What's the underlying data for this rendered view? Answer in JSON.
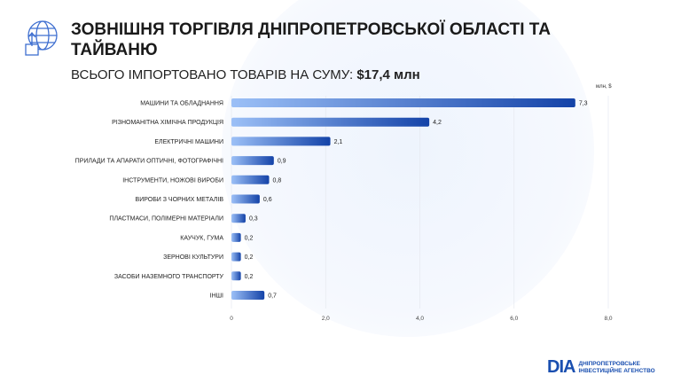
{
  "header": {
    "title": "ЗОВНІШНЯ ТОРГІВЛЯ ДНІПРОПЕТРОВСЬКОЇ ОБЛАСТІ ТА ТАЙВАНЮ",
    "subtitle_prefix": "ВСЬОГО ІМПОРТОВАНО ТОВАРІВ НА СУМУ: ",
    "subtitle_value": "$17,4 млн"
  },
  "logo": {
    "mark": "DIA",
    "line1": "ДНІПРОПЕТРОВСЬКЕ",
    "line2": "ІНВЕСТИЦІЙНЕ АГЕНСТВО"
  },
  "colors": {
    "bar_start": "#9cc0f7",
    "bar_end": "#1443a8",
    "text": "#1a1a1a"
  },
  "chart_data": {
    "type": "bar",
    "orientation": "horizontal",
    "unit_label": "млн, $",
    "categories": [
      "МАШИНИ ТА ОБЛАДНАННЯ",
      "РІЗНОМАНІТНА ХІМІЧНА ПРОДУКЦІЯ",
      "ЕЛЕКТРИЧНІ МАШИНИ",
      "ПРИЛАДИ ТА АПАРАТИ ОПТИЧНІ, ФОТОГРАФІЧНІ",
      "ІНСТРУМЕНТИ, НОЖОВІ ВИРОБИ",
      "ВИРОБИ З ЧОРНИХ МЕТАЛІВ",
      "ПЛАСТМАСИ, ПОЛІМЕРНІ МАТЕРІАЛИ",
      "КАУЧУК, ГУМА",
      "ЗЕРНОВІ КУЛЬТУРИ",
      "ЗАСОБИ НАЗЕМНОГО ТРАНСПОРТУ",
      "ІНШІ"
    ],
    "values": [
      7.3,
      4.2,
      2.1,
      0.9,
      0.8,
      0.6,
      0.3,
      0.2,
      0.2,
      0.2,
      0.7
    ],
    "value_labels": [
      "7,3",
      "4,2",
      "2,1",
      "0,9",
      "0,8",
      "0,6",
      "0,3",
      "0,2",
      "0,2",
      "0,2",
      "0,7"
    ],
    "xlim": [
      0,
      8
    ],
    "ticks": [
      0,
      2,
      4,
      6,
      8
    ],
    "tick_labels": [
      "0",
      "2,0",
      "4,0",
      "6,0",
      "8,0"
    ],
    "grid": true
  }
}
